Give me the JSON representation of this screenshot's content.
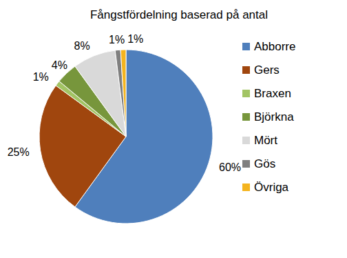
{
  "chart_data": {
    "type": "pie",
    "title": "Fångstfördelning baserad på antal",
    "categories": [
      "Abborre",
      "Gers",
      "Braxen",
      "Björkna",
      "Mört",
      "Gös",
      "Övriga"
    ],
    "values": [
      60,
      25,
      1,
      4,
      8,
      1,
      1
    ],
    "value_labels": [
      "60%",
      "25%",
      "1%",
      "4%",
      "8%",
      "1%",
      "1%"
    ],
    "colors": [
      "#4f7fbc",
      "#a0460e",
      "#a2c464",
      "#77963c",
      "#d9d9d9",
      "#7f7f7f",
      "#f4b41f"
    ],
    "data_labels": true,
    "legend": "right"
  }
}
